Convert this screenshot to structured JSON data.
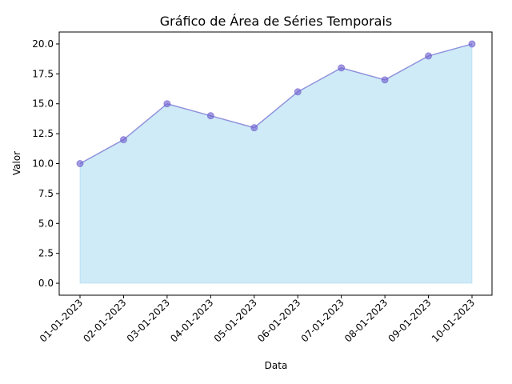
{
  "chart_data": {
    "type": "area",
    "title": "Gráfico de Área de Séries Temporais",
    "xlabel": "Data",
    "ylabel": "Valor",
    "categories": [
      "01-01-2023",
      "02-01-2023",
      "03-01-2023",
      "04-01-2023",
      "05-01-2023",
      "06-01-2023",
      "07-01-2023",
      "08-01-2023",
      "09-01-2023",
      "10-01-2023"
    ],
    "series": [
      {
        "values": [
          10,
          12,
          15,
          14,
          13,
          16,
          18,
          17,
          19,
          20
        ]
      }
    ],
    "ylim": [
      -1,
      21
    ],
    "yticks": [
      0.0,
      2.5,
      5.0,
      7.5,
      10.0,
      12.5,
      15.0,
      17.5,
      20.0
    ],
    "ytick_labels": [
      "0.0",
      "2.5",
      "5.0",
      "7.5",
      "10.0",
      "12.5",
      "15.0",
      "17.5",
      "20.0"
    ],
    "xtick_rotation_deg": 45,
    "grid": false,
    "legend": "none",
    "colors": {
      "area_fill": "#87ceeb",
      "line": "#6a5acd",
      "marker": "#6a5acd",
      "axes": "#000000"
    }
  }
}
